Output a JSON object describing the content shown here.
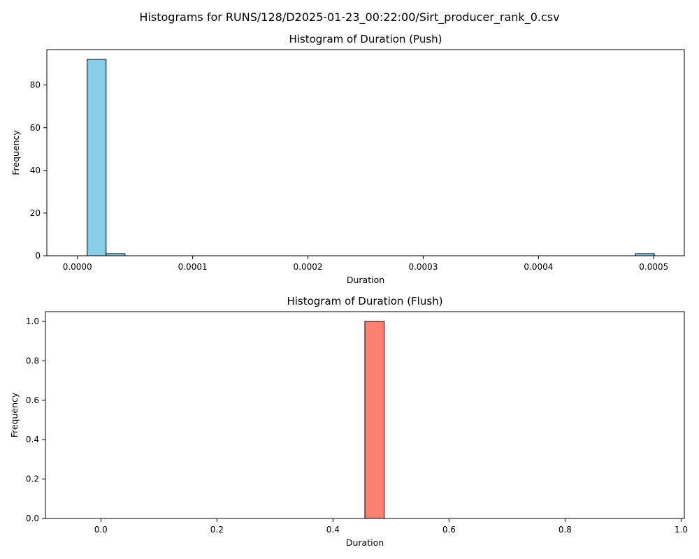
{
  "figure": {
    "suptitle": "Histograms for RUNS/128/D2025-01-23_00:22:00/Sirt_producer_rank_0.csv"
  },
  "chart_data": [
    {
      "type": "bar",
      "title": "Histogram of Duration (Push)",
      "xlabel": "Duration",
      "ylabel": "Frequency",
      "xlim": [
        -2.65e-05,
        0.0005265
      ],
      "ylim": [
        0,
        96.6
      ],
      "xticks": [
        0.0,
        0.0001,
        0.0002,
        0.0003,
        0.0004,
        0.0005
      ],
      "xtick_labels": [
        "0.0000",
        "0.0001",
        "0.0002",
        "0.0003",
        "0.0004",
        "0.0005"
      ],
      "yticks": [
        0,
        20,
        40,
        60,
        80
      ],
      "ytick_labels": [
        "0",
        "20",
        "40",
        "60",
        "80"
      ],
      "bin_start": 8.5e-06,
      "bin_width": 1.64e-05,
      "counts": [
        92,
        1,
        0,
        0,
        0,
        0,
        0,
        0,
        0,
        0,
        0,
        0,
        0,
        0,
        0,
        0,
        0,
        0,
        0,
        0,
        0,
        0,
        0,
        0,
        0,
        0,
        0,
        0,
        0,
        1
      ],
      "color": "#87ceeb",
      "edgecolor": "#000000"
    },
    {
      "type": "bar",
      "title": "Histogram of Duration (Flush)",
      "xlabel": "Duration",
      "ylabel": "Frequency",
      "xlim": [
        -0.0955,
        1.0055
      ],
      "ylim": [
        0,
        1.05
      ],
      "xticks": [
        0.0,
        0.2,
        0.4,
        0.6,
        0.8,
        1.0
      ],
      "xtick_labels": [
        "0.0",
        "0.2",
        "0.4",
        "0.6",
        "0.8",
        "1.0"
      ],
      "yticks": [
        0.0,
        0.2,
        0.4,
        0.6,
        0.8,
        1.0
      ],
      "ytick_labels": [
        "0.0",
        "0.2",
        "0.4",
        "0.6",
        "0.8",
        "1.0"
      ],
      "bin_start": -0.045,
      "bin_width": 0.03333,
      "counts": [
        0,
        0,
        0,
        0,
        0,
        0,
        0,
        0,
        0,
        0,
        0,
        0,
        0,
        0,
        0,
        1,
        0,
        0,
        0,
        0,
        0,
        0,
        0,
        0,
        0,
        0,
        0,
        0,
        0,
        0
      ],
      "color": "#fa8072",
      "edgecolor": "#000000"
    }
  ]
}
